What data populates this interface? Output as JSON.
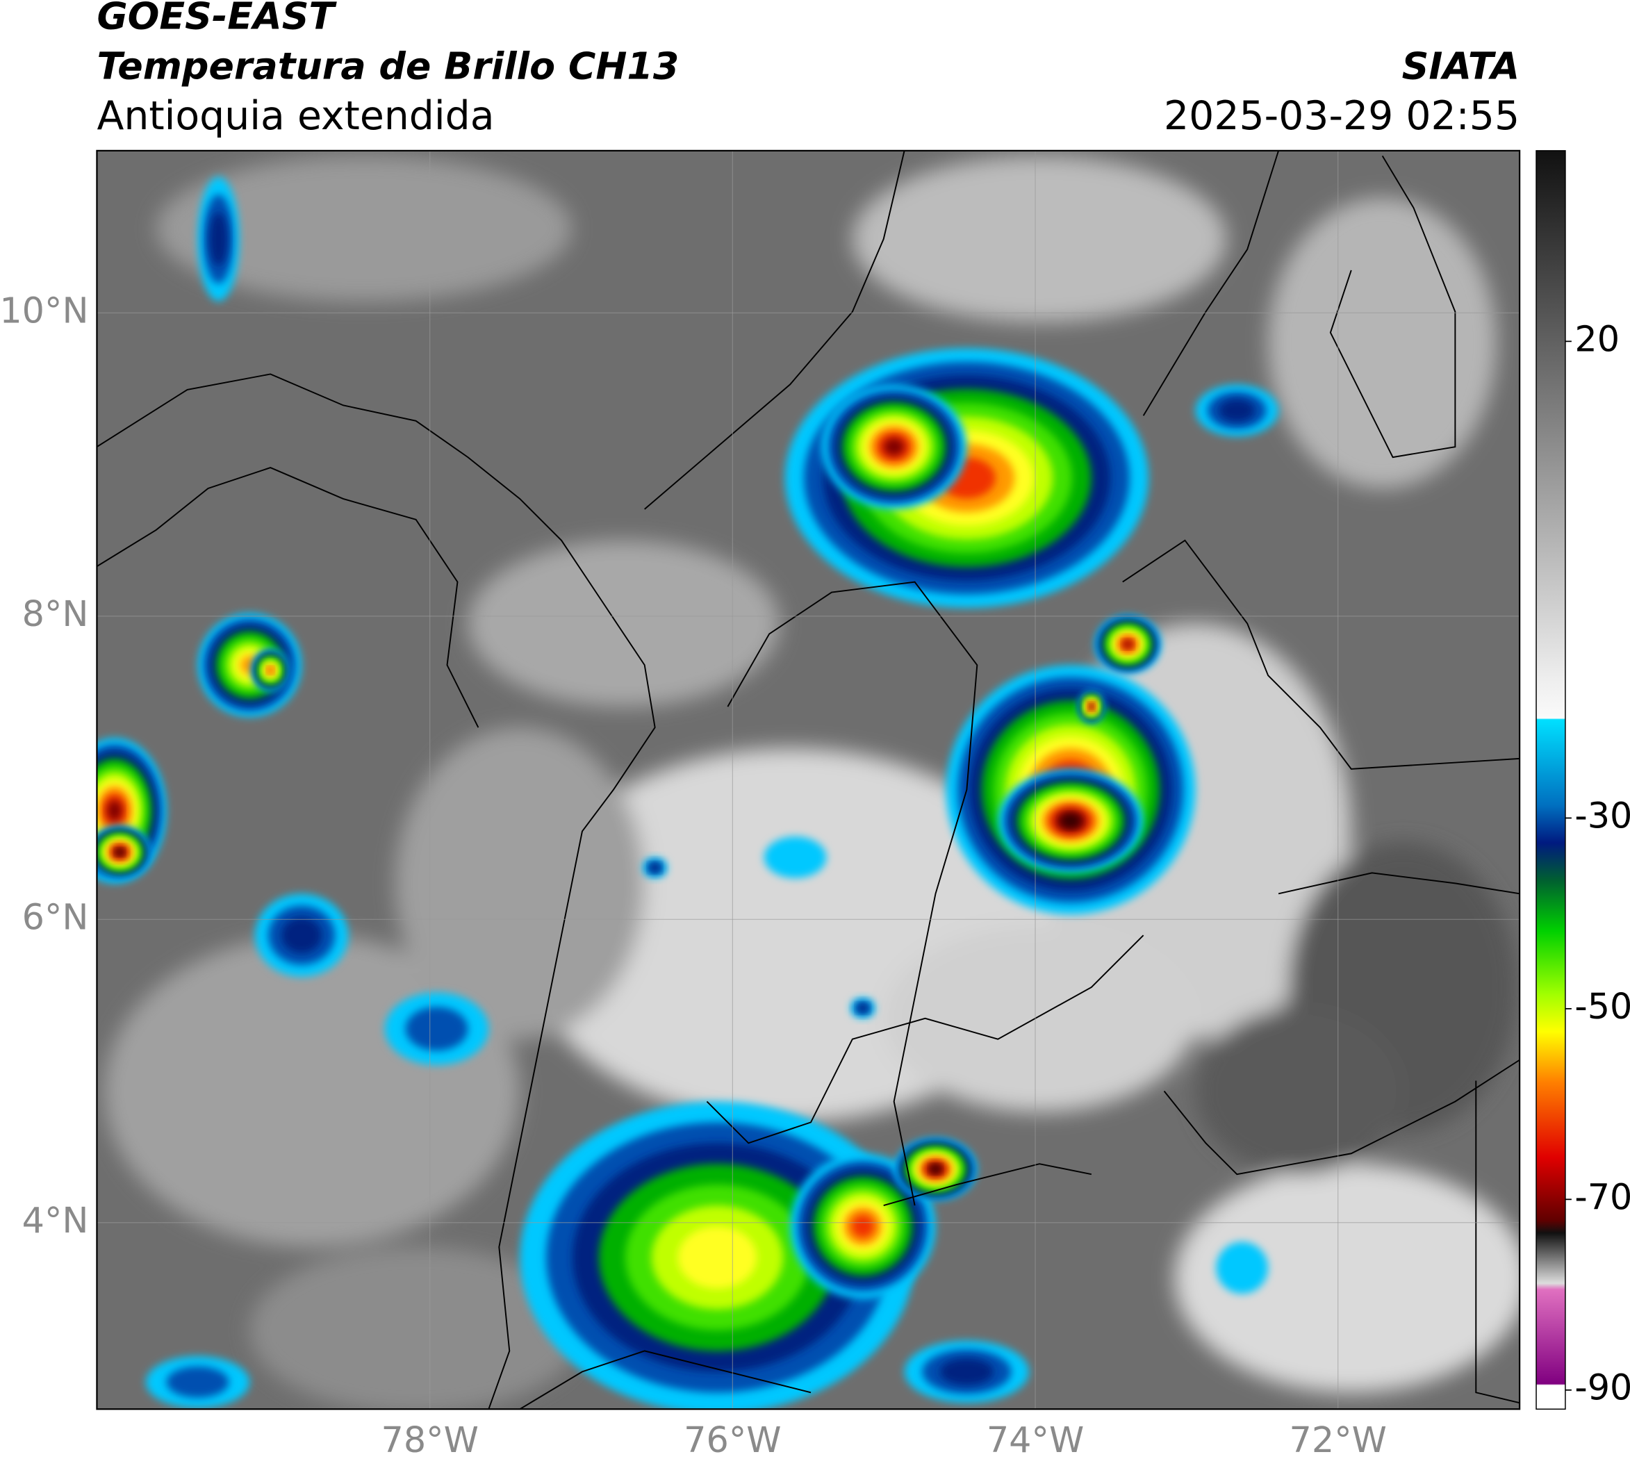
{
  "header": {
    "title": "GOES-EAST",
    "subtitle": "Temperatura de Brillo CH13",
    "region": "Antioquia extendida",
    "source": "SIATA",
    "datetime": "2025-03-29 02:55"
  },
  "map": {
    "xlim": [
      -80.2,
      -70.8
    ],
    "ylim": [
      2.77,
      11.07
    ],
    "xticks": [
      {
        "value": -78,
        "label": "78°W"
      },
      {
        "value": -76,
        "label": "76°W"
      },
      {
        "value": -74,
        "label": "74°W"
      },
      {
        "value": -72,
        "label": "72°W"
      }
    ],
    "yticks": [
      {
        "value": 10,
        "label": "10°N"
      },
      {
        "value": 8,
        "label": "8°N"
      },
      {
        "value": 6,
        "label": "6°N"
      },
      {
        "value": 4,
        "label": "4°N"
      }
    ],
    "grid": true
  },
  "colorbar": {
    "lim": [
      -92,
      40
    ],
    "ticks": [
      20,
      -30,
      -50,
      -70,
      -90
    ]
  }
}
